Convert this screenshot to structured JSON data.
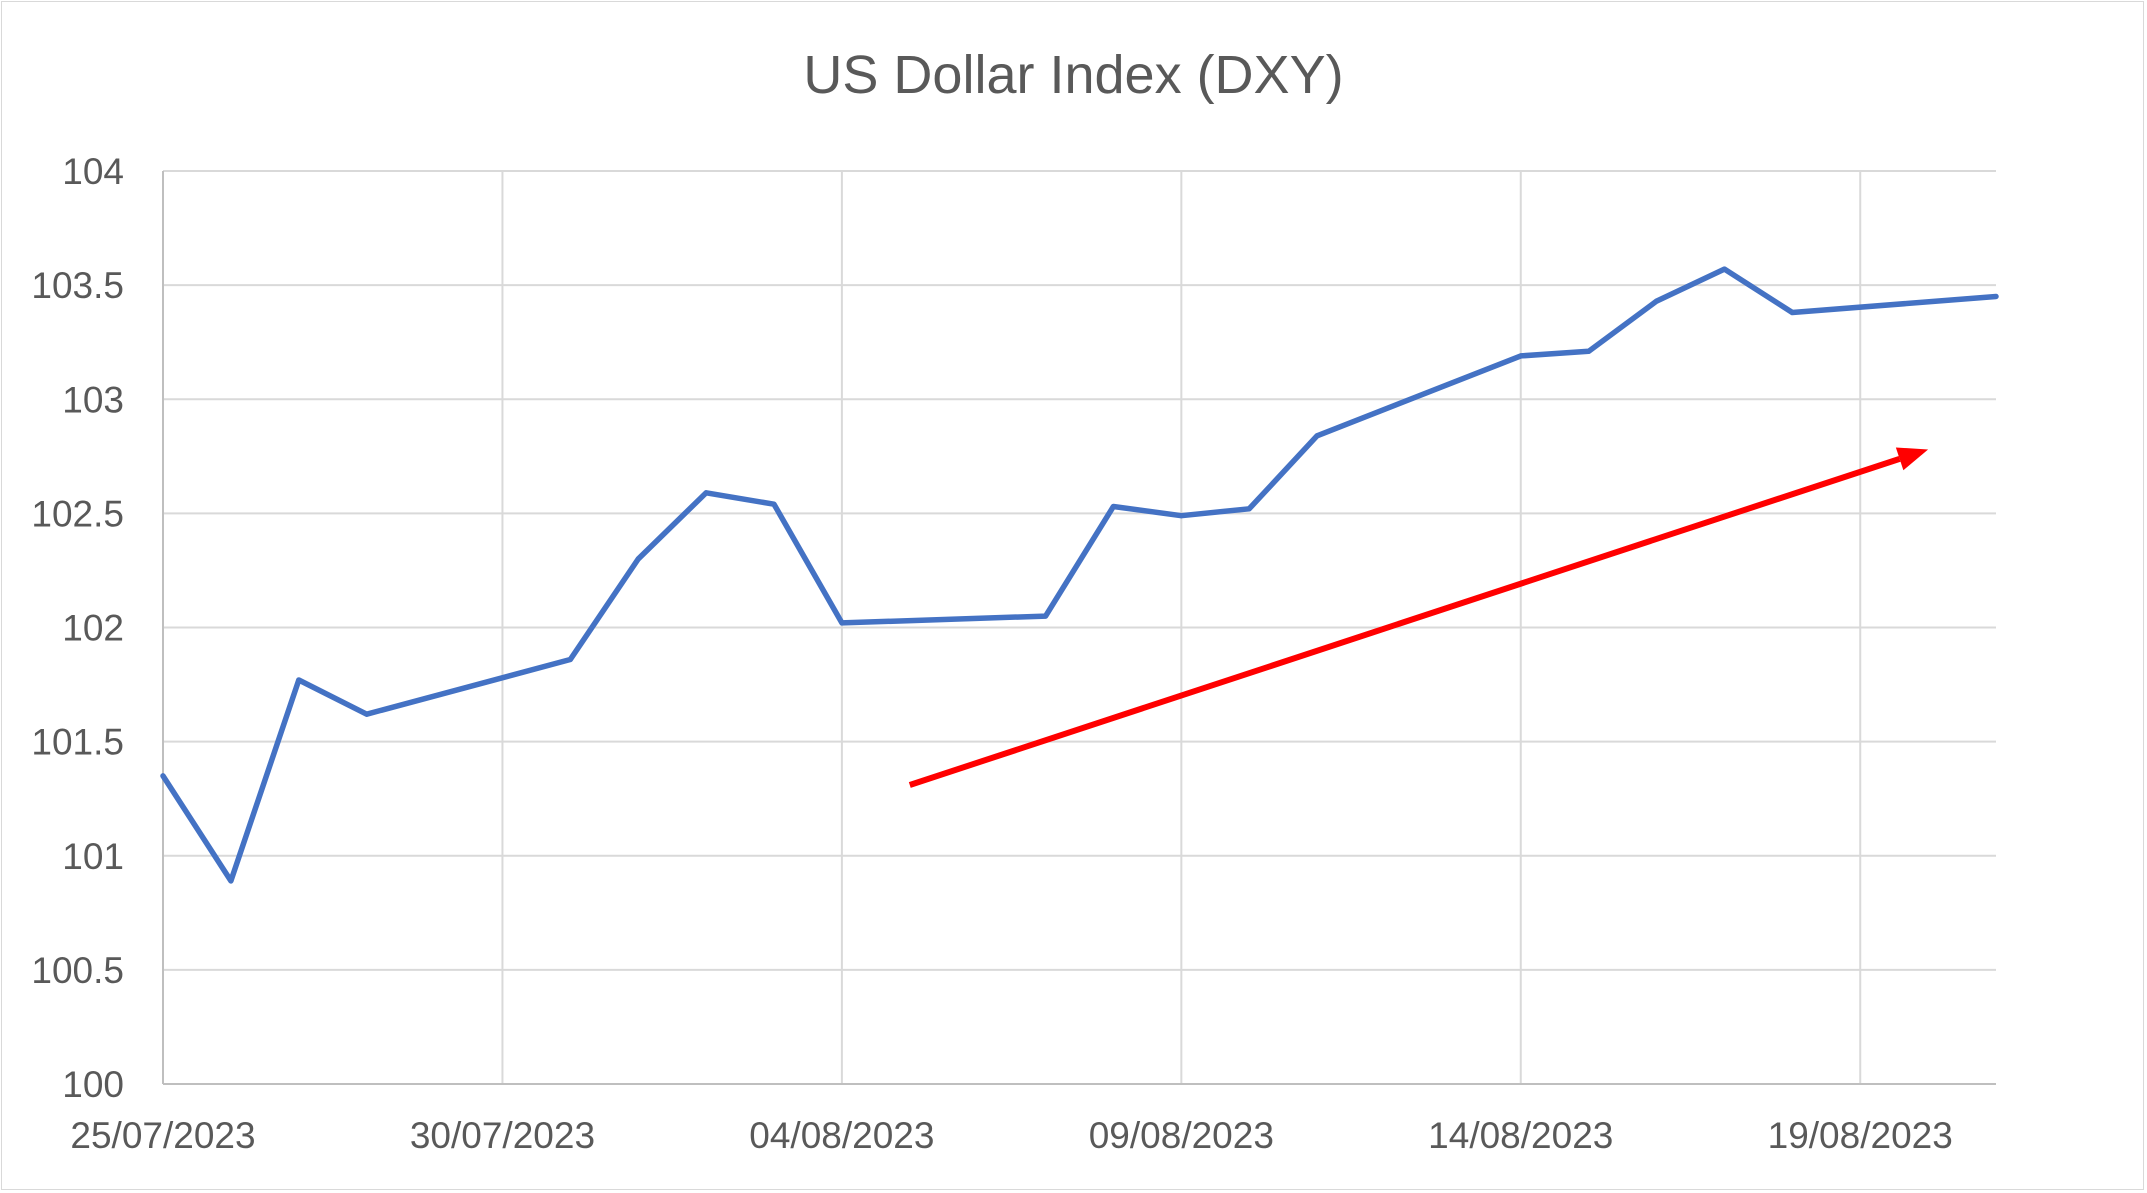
{
  "chart_data": {
    "type": "line",
    "title": "US Dollar Index (DXY)",
    "xlabel": "",
    "ylabel": "",
    "x_tick_labels": [
      "25/07/2023",
      "30/07/2023",
      "04/08/2023",
      "09/08/2023",
      "14/08/2023",
      "19/08/2023"
    ],
    "y_tick_labels": [
      "100",
      "100.5",
      "101",
      "101.5",
      "102",
      "102.5",
      "103",
      "103.5",
      "104"
    ],
    "xlim": [
      "2023-07-25",
      "2023-08-21"
    ],
    "ylim": [
      100,
      104
    ],
    "grid": true,
    "legend": "none",
    "series": [
      {
        "color": "#4472c4",
        "points": [
          {
            "x": "2023-07-25",
            "y": 101.35
          },
          {
            "x": "2023-07-26",
            "y": 100.89
          },
          {
            "x": "2023-07-27",
            "y": 101.77
          },
          {
            "x": "2023-07-28",
            "y": 101.62
          },
          {
            "x": "2023-07-31",
            "y": 101.86
          },
          {
            "x": "2023-08-01",
            "y": 102.3
          },
          {
            "x": "2023-08-02",
            "y": 102.59
          },
          {
            "x": "2023-08-03",
            "y": 102.54
          },
          {
            "x": "2023-08-04",
            "y": 102.02
          },
          {
            "x": "2023-08-07",
            "y": 102.05
          },
          {
            "x": "2023-08-08",
            "y": 102.53
          },
          {
            "x": "2023-08-09",
            "y": 102.49
          },
          {
            "x": "2023-08-10",
            "y": 102.52
          },
          {
            "x": "2023-08-11",
            "y": 102.84
          },
          {
            "x": "2023-08-14",
            "y": 103.19
          },
          {
            "x": "2023-08-15",
            "y": 103.21
          },
          {
            "x": "2023-08-16",
            "y": 103.43
          },
          {
            "x": "2023-08-17",
            "y": 103.57
          },
          {
            "x": "2023-08-18",
            "y": 103.38
          },
          {
            "x": "2023-08-21",
            "y": 103.45
          }
        ]
      }
    ],
    "annotations": [
      {
        "type": "arrow",
        "color": "#ff0000",
        "from": {
          "x": "2023-08-05",
          "y": 101.31
        },
        "to": {
          "x": "2023-08-20",
          "y": 102.78
        }
      }
    ]
  }
}
